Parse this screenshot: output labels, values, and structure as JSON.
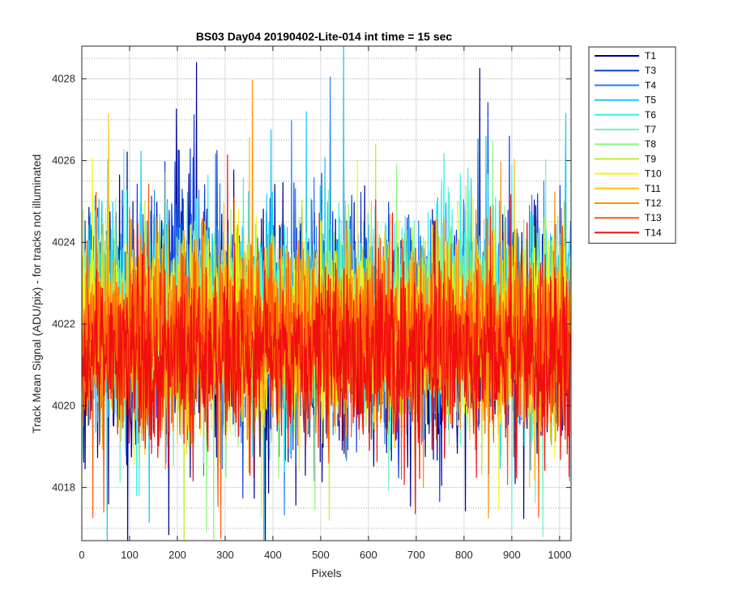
{
  "chart_data": {
    "type": "line",
    "title": "BS03 Day04 20190402-Lite-014 int time = 15 sec",
    "xlabel": "Pixels",
    "ylabel": "Track Mean Signal (ADU/pix) - for tracks not illuminated",
    "xlim": [
      0,
      1024
    ],
    "ylim": [
      4016.7,
      4028.8
    ],
    "xticks": [
      0,
      100,
      200,
      300,
      400,
      500,
      600,
      700,
      800,
      900,
      1000
    ],
    "yticks": [
      4018,
      4020,
      4022,
      4024,
      4026,
      4028
    ],
    "grid": true,
    "minor_grid_y": true,
    "legend_position": "outside-right",
    "series": [
      {
        "name": "T1",
        "color": "#00008F",
        "mean": 4021.6,
        "spread": 1.4
      },
      {
        "name": "T3",
        "color": "#0A3EE0",
        "mean": 4022.0,
        "spread": 1.25
      },
      {
        "name": "T4",
        "color": "#2281F0",
        "mean": 4022.1,
        "spread": 1.2
      },
      {
        "name": "T5",
        "color": "#16C8F2",
        "mean": 4022.2,
        "spread": 1.2
      },
      {
        "name": "T6",
        "color": "#33F0F0",
        "mean": 4022.1,
        "spread": 1.15
      },
      {
        "name": "T7",
        "color": "#6EF5C8",
        "mean": 4022.0,
        "spread": 1.1
      },
      {
        "name": "T8",
        "color": "#8CF57E",
        "mean": 4021.9,
        "spread": 1.1
      },
      {
        "name": "T9",
        "color": "#B8F02E",
        "mean": 4021.9,
        "spread": 1.1
      },
      {
        "name": "T10",
        "color": "#F5F510",
        "mean": 4021.8,
        "spread": 1.1
      },
      {
        "name": "T11",
        "color": "#FFC20E",
        "mean": 4021.7,
        "spread": 1.1
      },
      {
        "name": "T12",
        "color": "#FF900A",
        "mean": 4021.6,
        "spread": 1.05
      },
      {
        "name": "T13",
        "color": "#FF5A08",
        "mean": 4021.7,
        "spread": 1.05
      },
      {
        "name": "T14",
        "color": "#F00E0E",
        "mean": 4021.2,
        "spread": 1.05
      }
    ]
  }
}
